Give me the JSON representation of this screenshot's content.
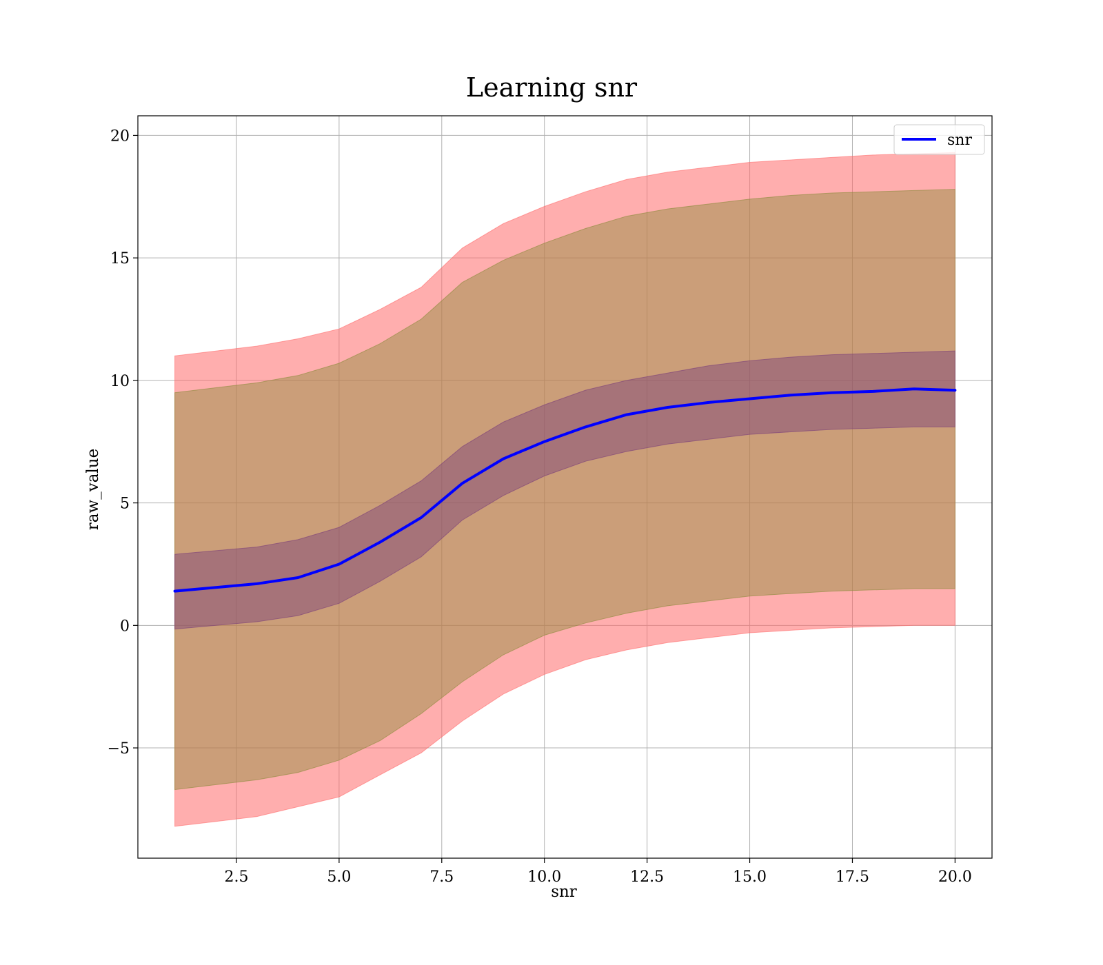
{
  "chart_data": {
    "type": "line",
    "title": "Learning snr",
    "xlabel": "snr",
    "ylabel": "raw_value",
    "xlim": [
      0.1,
      20.9
    ],
    "ylim": [
      -9.5,
      20.8
    ],
    "grid": true,
    "legend_position": "top-right",
    "x_ticks": [
      2.5,
      5.0,
      7.5,
      10.0,
      12.5,
      15.0,
      17.5,
      20.0
    ],
    "x_tick_labels": [
      "2.5",
      "5.0",
      "7.5",
      "10.0",
      "12.5",
      "15.0",
      "17.5",
      "20.0"
    ],
    "y_ticks": [
      -5,
      0,
      5,
      10,
      15,
      20
    ],
    "y_tick_labels": [
      "−5",
      "0",
      "5",
      "10",
      "15",
      "20"
    ],
    "colors": {
      "line": "#0000ff",
      "band_outer": "#ff6b6b",
      "band_middle": "#8b8b3a",
      "band_inner": "#7a3d7a",
      "grid": "#b0b0b0"
    },
    "x": [
      1.0,
      2.0,
      3.0,
      4.0,
      5.0,
      6.0,
      7.0,
      8.0,
      9.0,
      10.0,
      11.0,
      12.0,
      13.0,
      14.0,
      15.0,
      16.0,
      17.0,
      18.0,
      19.0,
      20.0
    ],
    "series": [
      {
        "name": "snr",
        "values": [
          1.4,
          1.55,
          1.7,
          1.95,
          2.5,
          3.4,
          4.4,
          5.8,
          6.8,
          7.5,
          8.1,
          8.6,
          8.9,
          9.1,
          9.25,
          9.4,
          9.5,
          9.55,
          9.65,
          9.6
        ]
      }
    ],
    "bands": [
      {
        "lower": [
          -8.2,
          -8.0,
          -7.8,
          -7.4,
          -7.0,
          -6.1,
          -5.2,
          -3.9,
          -2.8,
          -2.0,
          -1.4,
          -1.0,
          -0.7,
          -0.5,
          -0.3,
          -0.2,
          -0.1,
          -0.05,
          0.0,
          0.0
        ],
        "upper": [
          11.0,
          11.2,
          11.4,
          11.7,
          12.1,
          12.9,
          13.8,
          15.4,
          16.4,
          17.1,
          17.7,
          18.2,
          18.5,
          18.7,
          18.9,
          19.0,
          19.1,
          19.2,
          19.25,
          19.3
        ]
      },
      {
        "lower": [
          -6.7,
          -6.5,
          -6.3,
          -6.0,
          -5.5,
          -4.7,
          -3.6,
          -2.3,
          -1.2,
          -0.4,
          0.1,
          0.5,
          0.8,
          1.0,
          1.2,
          1.3,
          1.4,
          1.45,
          1.5,
          1.5
        ],
        "upper": [
          9.5,
          9.7,
          9.9,
          10.2,
          10.7,
          11.5,
          12.5,
          14.0,
          14.9,
          15.6,
          16.2,
          16.7,
          17.0,
          17.2,
          17.4,
          17.55,
          17.65,
          17.7,
          17.75,
          17.8
        ]
      },
      {
        "lower": [
          -0.15,
          0.0,
          0.15,
          0.4,
          0.9,
          1.8,
          2.8,
          4.3,
          5.3,
          6.1,
          6.7,
          7.1,
          7.4,
          7.6,
          7.8,
          7.9,
          8.0,
          8.05,
          8.1,
          8.1
        ],
        "upper": [
          2.9,
          3.05,
          3.2,
          3.5,
          4.0,
          4.9,
          5.9,
          7.3,
          8.3,
          9.0,
          9.6,
          10.0,
          10.3,
          10.6,
          10.8,
          10.95,
          11.05,
          11.1,
          11.15,
          11.2
        ]
      }
    ]
  }
}
